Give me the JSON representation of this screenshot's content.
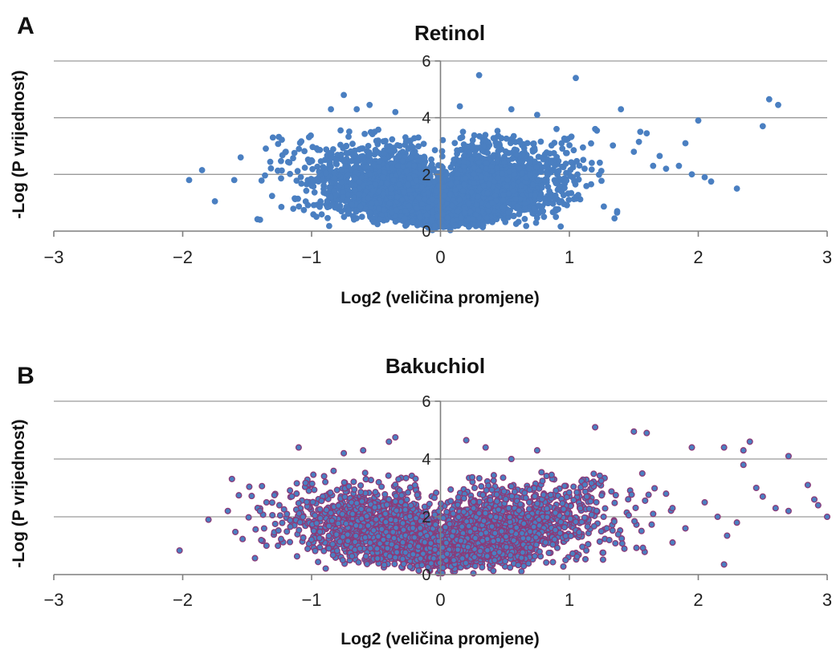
{
  "chart_data": [
    {
      "type": "scatter",
      "panel_label": "A",
      "title": "Retinol",
      "xlabel": "Log2 (veličina promjene)",
      "ylabel": "-Log (P vrijednost)",
      "xlim": [
        -3,
        3
      ],
      "ylim": [
        0,
        6
      ],
      "xticks": [
        "−3",
        "−2",
        "−1",
        "0",
        "1",
        "2",
        "3"
      ],
      "yticks": [
        "0",
        "2",
        "4",
        "6"
      ],
      "grid": true,
      "point_color": "#4a7fc1",
      "outline_color": "#4a7fc1",
      "distribution": {
        "description_points": "dense cloud of ~5000 genes, |x| mostly < 1.2, y mostly 0-3.3",
        "n_points": 5000,
        "x_spread": 0.42,
        "x_center": 0.0,
        "y_peak": 1.6
      },
      "outliers": [
        [
          0.3,
          5.5
        ],
        [
          1.05,
          5.4
        ],
        [
          2.55,
          4.65
        ],
        [
          2.62,
          4.45
        ],
        [
          2.5,
          3.7
        ],
        [
          2.0,
          3.9
        ],
        [
          1.4,
          4.3
        ],
        [
          -0.75,
          4.8
        ],
        [
          -0.85,
          4.3
        ],
        [
          -0.55,
          4.45
        ],
        [
          -0.35,
          4.2
        ],
        [
          0.15,
          4.4
        ],
        [
          -1.95,
          1.8
        ],
        [
          -1.85,
          2.15
        ],
        [
          -1.75,
          1.05
        ],
        [
          -1.42,
          0.42
        ],
        [
          -1.4,
          0.4
        ],
        [
          2.3,
          1.5
        ],
        [
          2.1,
          1.75
        ],
        [
          1.9,
          3.1
        ],
        [
          1.6,
          3.45
        ],
        [
          1.7,
          2.65
        ],
        [
          1.85,
          2.3
        ],
        [
          1.5,
          2.8
        ],
        [
          1.35,
          0.45
        ],
        [
          1.37,
          0.65
        ],
        [
          -1.55,
          2.6
        ],
        [
          -1.3,
          3.3
        ],
        [
          -1.6,
          1.8
        ],
        [
          -1.2,
          2.8
        ],
        [
          0.55,
          4.3
        ],
        [
          0.75,
          4.1
        ],
        [
          -0.65,
          4.3
        ],
        [
          0.9,
          3.6
        ],
        [
          1.2,
          3.6
        ],
        [
          1.75,
          2.2
        ],
        [
          1.95,
          2.0
        ],
        [
          1.65,
          2.3
        ],
        [
          2.05,
          1.9
        ],
        [
          1.55,
          3.5
        ]
      ]
    },
    {
      "type": "scatter",
      "panel_label": "B",
      "title": "Bakuchiol",
      "xlabel": "Log2 (veličina promjene)",
      "ylabel": "-Log (P vrijednost)",
      "xlim": [
        -3,
        3
      ],
      "ylim": [
        0,
        6
      ],
      "xticks": [
        "−3",
        "−2",
        "−1",
        "0",
        "1",
        "2",
        "3"
      ],
      "yticks": [
        "0",
        "2",
        "4",
        "6"
      ],
      "grid": true,
      "point_color": "#4a7fc1",
      "outline_color": "#8b3a78",
      "distribution": {
        "n_points": 3500,
        "x_spread": 0.55,
        "x_center": 0.05,
        "y_peak": 1.6
      },
      "outliers": [
        [
          1.2,
          5.1
        ],
        [
          1.5,
          4.95
        ],
        [
          1.6,
          4.9
        ],
        [
          -0.35,
          4.75
        ],
        [
          -0.4,
          4.6
        ],
        [
          0.2,
          4.65
        ],
        [
          0.35,
          4.4
        ],
        [
          2.4,
          4.6
        ],
        [
          2.2,
          4.4
        ],
        [
          1.95,
          4.4
        ],
        [
          2.35,
          4.3
        ],
        [
          2.7,
          4.1
        ],
        [
          2.35,
          3.8
        ],
        [
          -1.1,
          4.4
        ],
        [
          -0.75,
          4.2
        ],
        [
          2.85,
          3.1
        ],
        [
          2.9,
          2.6
        ],
        [
          2.93,
          2.4
        ],
        [
          3.0,
          2.0
        ],
        [
          2.7,
          2.2
        ],
        [
          2.5,
          2.7
        ],
        [
          2.45,
          3.0
        ],
        [
          -1.8,
          1.9
        ],
        [
          -1.65,
          2.2
        ],
        [
          -1.35,
          2.5
        ],
        [
          -1.4,
          2.2
        ],
        [
          -1.25,
          2.4
        ],
        [
          -1.35,
          1.0
        ],
        [
          2.2,
          0.35
        ],
        [
          2.3,
          1.8
        ],
        [
          2.05,
          2.5
        ],
        [
          1.8,
          2.3
        ],
        [
          1.65,
          2.1
        ],
        [
          1.75,
          2.8
        ],
        [
          0.55,
          4.0
        ],
        [
          0.75,
          4.3
        ],
        [
          -0.6,
          4.3
        ],
        [
          2.15,
          2.0
        ],
        [
          2.6,
          2.3
        ],
        [
          1.9,
          1.6
        ]
      ]
    }
  ]
}
